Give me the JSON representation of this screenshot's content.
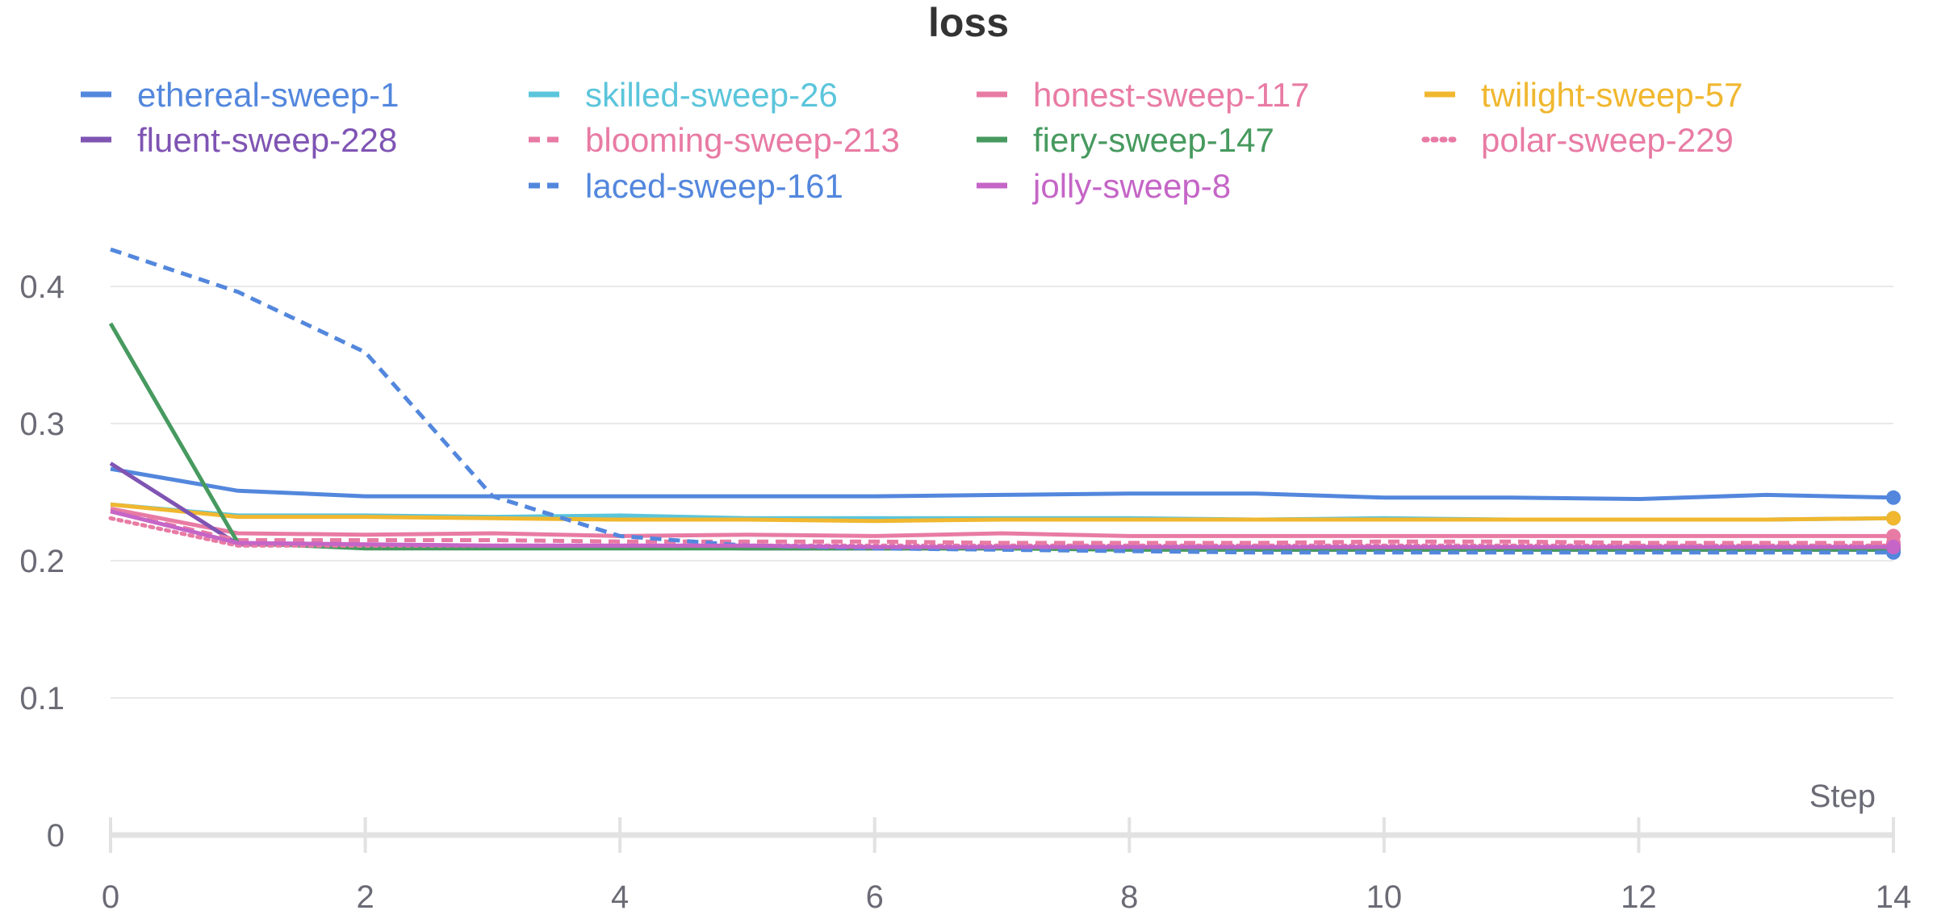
{
  "chart_data": {
    "type": "line",
    "title": "loss",
    "xlabel": "Step",
    "ylabel": "",
    "xlim": [
      0,
      14
    ],
    "ylim": [
      0,
      0.45
    ],
    "xticks": [
      0,
      2,
      4,
      6,
      8,
      10,
      12,
      14
    ],
    "yticks": [
      0,
      0.1,
      0.2,
      0.3,
      0.4
    ],
    "grid": true,
    "legend_position": "top",
    "x": [
      0,
      1,
      2,
      3,
      4,
      5,
      6,
      7,
      8,
      9,
      10,
      11,
      12,
      13,
      14
    ],
    "series": [
      {
        "name": "ethereal-sweep-1",
        "color": "#5387dd",
        "dash": "solid",
        "values": [
          0.267,
          0.251,
          0.247,
          0.247,
          0.247,
          0.247,
          0.247,
          0.248,
          0.249,
          0.249,
          0.246,
          0.246,
          0.245,
          0.248,
          0.246
        ]
      },
      {
        "name": "skilled-sweep-26",
        "color": "#5bc5db",
        "dash": "solid",
        "values": [
          0.241,
          0.233,
          0.233,
          0.232,
          0.233,
          0.231,
          0.231,
          0.231,
          0.231,
          0.23,
          0.231,
          0.23,
          0.23,
          0.23,
          0.231
        ]
      },
      {
        "name": "honest-sweep-117",
        "color": "#e87ba4",
        "dash": "solid",
        "values": [
          0.238,
          0.22,
          0.219,
          0.22,
          0.218,
          0.219,
          0.218,
          0.22,
          0.218,
          0.218,
          0.218,
          0.218,
          0.218,
          0.218,
          0.218
        ]
      },
      {
        "name": "twilight-sweep-57",
        "color": "#f0b72f",
        "dash": "solid",
        "values": [
          0.241,
          0.232,
          0.232,
          0.231,
          0.23,
          0.23,
          0.229,
          0.23,
          0.23,
          0.23,
          0.23,
          0.23,
          0.23,
          0.23,
          0.231
        ]
      },
      {
        "name": "fluent-sweep-228",
        "color": "#7f54b3",
        "dash": "solid",
        "values": [
          0.271,
          0.212,
          0.211,
          0.21,
          0.21,
          0.209,
          0.209,
          0.209,
          0.209,
          0.208,
          0.208,
          0.208,
          0.208,
          0.208,
          0.208
        ]
      },
      {
        "name": "blooming-sweep-213",
        "color": "#e87ba4",
        "dash": "dashed",
        "values": [
          0.236,
          0.215,
          0.215,
          0.215,
          0.214,
          0.214,
          0.214,
          0.213,
          0.213,
          0.213,
          0.214,
          0.214,
          0.213,
          0.213,
          0.213
        ]
      },
      {
        "name": "fiery-sweep-147",
        "color": "#479a5f",
        "dash": "solid",
        "values": [
          0.373,
          0.213,
          0.209,
          0.209,
          0.209,
          0.209,
          0.209,
          0.209,
          0.208,
          0.208,
          0.208,
          0.208,
          0.208,
          0.208,
          0.208
        ]
      },
      {
        "name": "polar-sweep-229",
        "color": "#e87ba4",
        "dash": "dotted",
        "values": [
          0.231,
          0.211,
          0.211,
          0.211,
          0.211,
          0.211,
          0.211,
          0.211,
          0.211,
          0.211,
          0.211,
          0.211,
          0.211,
          0.211,
          0.211
        ]
      },
      {
        "name": "laced-sweep-161",
        "color": "#5387dd",
        "dash": "dashed",
        "values": [
          0.427,
          0.396,
          0.352,
          0.247,
          0.218,
          0.211,
          0.209,
          0.208,
          0.207,
          0.206,
          0.206,
          0.206,
          0.206,
          0.206,
          0.206
        ]
      },
      {
        "name": "jolly-sweep-8",
        "color": "#c565c7",
        "dash": "solid",
        "values": [
          0.236,
          0.213,
          0.212,
          0.211,
          0.211,
          0.211,
          0.21,
          0.21,
          0.21,
          0.21,
          0.21,
          0.21,
          0.21,
          0.21,
          0.21
        ]
      }
    ]
  }
}
